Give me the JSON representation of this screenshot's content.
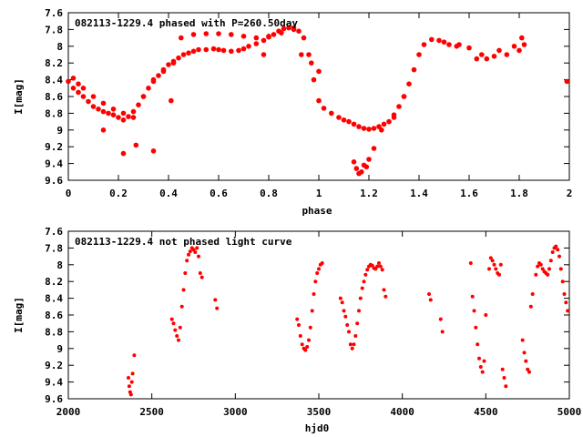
{
  "chart_data": [
    {
      "type": "scatter",
      "title": "082113-1229.4 phased with P=260.50day",
      "xlabel": "phase",
      "ylabel": "I[mag]",
      "xlim": [
        0,
        2
      ],
      "ylim": [
        9.6,
        7.6
      ],
      "y_inverted": true,
      "x_ticks": [
        "0",
        "0.2",
        "0.4",
        "0.6",
        "0.8",
        "1",
        "1.2",
        "1.4",
        "1.6",
        "1.8",
        "2"
      ],
      "y_ticks": [
        "7.6",
        "7.8",
        "8",
        "8.2",
        "8.4",
        "8.6",
        "8.8",
        "9",
        "9.2",
        "9.4",
        "9.6"
      ],
      "grid": false,
      "marker_color": "#ff0000",
      "series": [
        {
          "x": [
            0.0,
            0.02,
            0.04,
            0.06,
            0.08,
            0.1,
            0.12,
            0.14,
            0.16,
            0.18,
            0.2,
            0.22,
            0.24,
            0.26,
            0.28,
            0.3,
            0.32,
            0.34,
            0.36,
            0.38,
            0.4,
            0.42,
            0.44,
            0.46,
            0.48,
            0.5,
            0.52,
            0.55,
            0.58,
            0.6,
            0.62,
            0.65,
            0.68,
            0.7,
            0.72,
            0.75,
            0.78,
            0.8,
            0.82,
            0.84,
            0.86,
            0.88,
            0.9,
            0.92,
            0.94,
            0.96,
            0.98,
            1.0,
            1.02,
            1.05,
            1.08,
            1.1,
            1.12,
            1.14,
            1.16,
            1.18,
            1.2,
            1.22,
            1.24,
            1.26,
            1.28,
            1.3,
            1.32,
            1.34,
            1.36,
            1.38,
            1.4,
            1.42,
            1.45,
            1.48,
            1.5,
            1.52,
            1.55,
            1.6,
            1.65,
            1.7,
            1.75,
            1.8,
            1.82,
            0.45,
            0.5,
            0.55,
            0.6,
            0.65,
            0.7,
            0.75,
            0.8,
            0.85,
            0.9,
            0.02,
            0.04,
            0.06,
            0.1,
            0.14,
            0.18,
            0.22,
            0.26,
            0.3,
            0.34,
            0.38,
            0.42,
            0.14,
            0.22,
            0.27,
            0.34,
            0.93,
            0.97,
            1.0,
            1.14,
            1.15,
            1.16,
            1.17,
            1.18,
            1.19,
            1.2,
            1.22,
            1.25,
            1.3,
            1.34,
            1.56,
            1.63,
            1.67,
            1.72,
            1.78,
            1.81,
            0.41,
            0.78,
            1.99
          ],
          "y": [
            8.42,
            8.5,
            8.55,
            8.6,
            8.66,
            8.72,
            8.75,
            8.78,
            8.8,
            8.82,
            8.85,
            8.88,
            8.84,
            8.78,
            8.7,
            8.6,
            8.5,
            8.42,
            8.35,
            8.28,
            8.22,
            8.18,
            8.14,
            8.1,
            8.08,
            8.06,
            8.04,
            8.04,
            8.03,
            8.04,
            8.05,
            8.06,
            8.05,
            8.03,
            8.0,
            7.97,
            7.93,
            7.89,
            7.86,
            7.82,
            7.79,
            7.78,
            7.78,
            7.82,
            7.9,
            8.1,
            8.4,
            8.65,
            8.74,
            8.8,
            8.85,
            8.88,
            8.9,
            8.93,
            8.96,
            8.98,
            8.99,
            8.98,
            8.96,
            8.93,
            8.9,
            8.82,
            8.72,
            8.6,
            8.45,
            8.28,
            8.1,
            7.98,
            7.92,
            7.93,
            7.95,
            7.98,
            8.0,
            8.02,
            8.1,
            8.12,
            8.1,
            8.05,
            7.98,
            7.9,
            7.86,
            7.85,
            7.85,
            7.86,
            7.88,
            7.9,
            7.88,
            7.84,
            7.8,
            8.38,
            8.45,
            8.5,
            8.6,
            8.68,
            8.75,
            8.8,
            8.85,
            8.6,
            8.4,
            8.3,
            8.2,
            9.0,
            9.28,
            9.18,
            9.25,
            8.1,
            8.2,
            8.3,
            9.38,
            9.46,
            9.52,
            9.5,
            9.42,
            9.44,
            9.35,
            9.22,
            9.0,
            8.85,
            8.6,
            7.98,
            8.15,
            8.15,
            8.05,
            8.0,
            7.9,
            8.65,
            8.1,
            8.42
          ]
        }
      ]
    },
    {
      "type": "scatter",
      "title": "082113-1229.4 not phased light curve",
      "xlabel": "hjd0",
      "ylabel": "I[mag]",
      "xlim": [
        2000,
        5000
      ],
      "ylim": [
        9.6,
        7.6
      ],
      "y_inverted": true,
      "x_ticks": [
        "2000",
        "2500",
        "3000",
        "3500",
        "4000",
        "4500",
        "5000"
      ],
      "y_ticks": [
        "7.6",
        "7.8",
        "8",
        "8.2",
        "8.4",
        "8.6",
        "8.8",
        "9",
        "9.2",
        "9.4",
        "9.6"
      ],
      "grid": false,
      "marker_color": "#ff0000",
      "series": [
        {
          "x": [
            2360,
            2365,
            2370,
            2375,
            2380,
            2385,
            2395,
            2620,
            2630,
            2640,
            2650,
            2660,
            2670,
            2680,
            2690,
            2700,
            2710,
            2720,
            2730,
            2740,
            2750,
            2760,
            2770,
            2780,
            2790,
            2800,
            2880,
            2890,
            3370,
            3380,
            3390,
            3400,
            3410,
            3420,
            3430,
            3440,
            3450,
            3460,
            3470,
            3480,
            3490,
            3500,
            3510,
            3520,
            3630,
            3640,
            3650,
            3660,
            3670,
            3680,
            3690,
            3700,
            3710,
            3720,
            3730,
            3740,
            3750,
            3760,
            3770,
            3780,
            3790,
            3800,
            3810,
            3820,
            3830,
            3840,
            3850,
            3860,
            3870,
            3880,
            3890,
            3900,
            4160,
            4170,
            4230,
            4240,
            4410,
            4420,
            4430,
            4440,
            4450,
            4460,
            4470,
            4480,
            4490,
            4500,
            4520,
            4530,
            4540,
            4550,
            4560,
            4570,
            4580,
            4590,
            4600,
            4610,
            4620,
            4720,
            4730,
            4740,
            4750,
            4760,
            4770,
            4780,
            4800,
            4810,
            4820,
            4830,
            4840,
            4850,
            4860,
            4870,
            4880,
            4890,
            4900,
            4910,
            4920,
            4930,
            4940,
            4950,
            4960,
            4970,
            4980,
            4990
          ],
          "y": [
            9.35,
            9.45,
            9.52,
            9.55,
            9.4,
            9.3,
            9.08,
            8.65,
            8.7,
            8.78,
            8.85,
            8.9,
            8.75,
            8.5,
            8.3,
            8.1,
            7.95,
            7.88,
            7.84,
            7.8,
            7.82,
            7.85,
            7.8,
            7.9,
            8.1,
            8.15,
            8.42,
            8.52,
            8.65,
            8.72,
            8.85,
            8.95,
            9.0,
            9.02,
            8.98,
            8.9,
            8.75,
            8.55,
            8.35,
            8.2,
            8.1,
            8.05,
            8.0,
            7.98,
            8.4,
            8.45,
            8.55,
            8.62,
            8.72,
            8.8,
            8.95,
            9.0,
            8.95,
            8.85,
            8.7,
            8.55,
            8.4,
            8.28,
            8.2,
            8.12,
            8.06,
            8.02,
            8.0,
            8.01,
            8.04,
            8.05,
            8.02,
            7.98,
            8.02,
            8.06,
            8.3,
            8.38,
            8.35,
            8.42,
            8.65,
            8.8,
            7.98,
            8.38,
            8.55,
            8.75,
            8.95,
            9.12,
            9.22,
            9.28,
            9.15,
            8.6,
            8.05,
            7.92,
            7.95,
            8.0,
            8.05,
            8.1,
            8.12,
            8.0,
            9.25,
            9.35,
            9.45,
            8.9,
            9.05,
            9.15,
            9.25,
            9.28,
            8.5,
            8.35,
            8.12,
            8.02,
            7.98,
            8.0,
            8.05,
            8.08,
            8.1,
            8.12,
            8.05,
            7.95,
            7.85,
            7.8,
            7.78,
            7.82,
            7.9,
            8.05,
            8.2,
            8.35,
            8.45,
            8.55
          ]
        }
      ]
    }
  ]
}
